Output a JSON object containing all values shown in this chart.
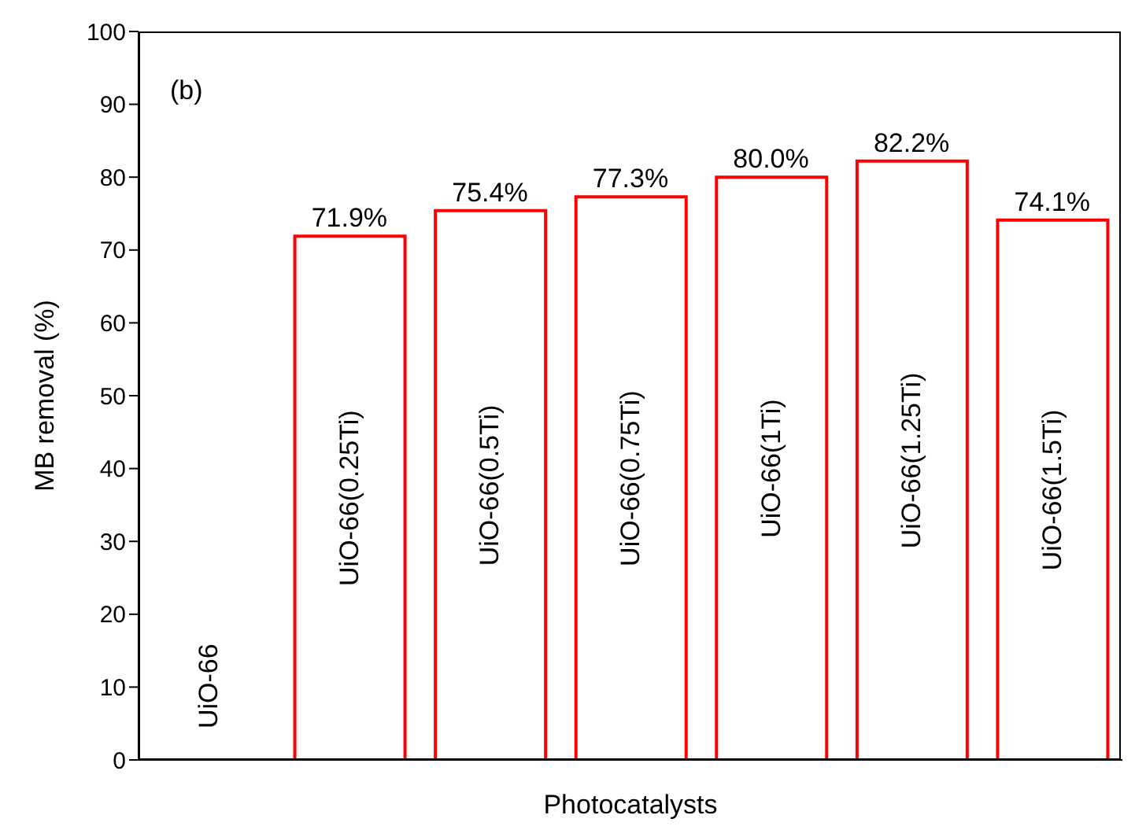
{
  "chart_data": {
    "type": "bar",
    "xlabel": "Photocatalysts",
    "ylabel": "MB removal (%)",
    "annotations": [
      "(b)"
    ],
    "categories": [
      "UiO-66",
      "UiO-66(0.25Ti)",
      "UiO-66(0.5Ti)",
      "UiO-66(0.75Ti)",
      "UiO-66(1Ti)",
      "UiO-66(1.25Ti)",
      "UiO-66(1.5Ti)"
    ],
    "values": [
      0,
      71.9,
      75.4,
      77.3,
      80.0,
      82.2,
      74.1
    ],
    "value_labels": [
      null,
      "71.9%",
      "75.4%",
      "77.3%",
      "80.0%",
      "82.2%",
      "74.1%"
    ],
    "color": "#ff0000",
    "ylim": [
      0,
      100
    ],
    "yticks": [
      0,
      10,
      20,
      30,
      40,
      50,
      60,
      70,
      80,
      90,
      100
    ]
  }
}
